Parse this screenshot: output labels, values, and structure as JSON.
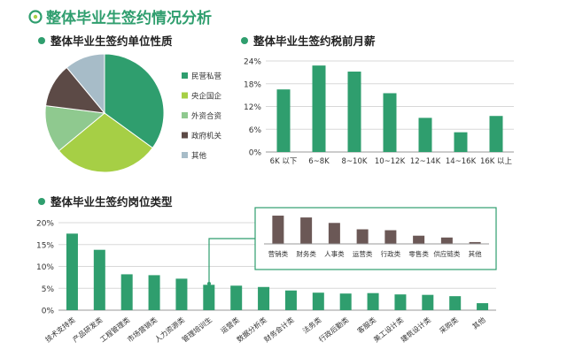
{
  "page": {
    "title": "整体毕业生签约情况分析"
  },
  "colors": {
    "green": "#2f9e6e",
    "pie": [
      "#2f9e6e",
      "#a6cf45",
      "#8fc98f",
      "#5c4a46",
      "#a7bcc8"
    ],
    "brown": "#6b5856",
    "sectionDot": "#2f9e6e"
  },
  "chart_data": [
    {
      "type": "pie",
      "title": "整体毕业生签约单位性质",
      "categories": [
        "民营私营",
        "央企国企",
        "外资合资",
        "政府机关",
        "其他"
      ],
      "values": [
        35,
        29,
        13,
        12,
        11
      ]
    },
    {
      "type": "bar",
      "title": "整体毕业生签约税前月薪",
      "categories": [
        "6K 以下",
        "6~8K",
        "8~10K",
        "10~12K",
        "12~14K",
        "14~16K",
        "16K 以上"
      ],
      "values": [
        16.5,
        22.8,
        21.2,
        15.5,
        9.0,
        5.2,
        9.5
      ],
      "y_ticks": [
        "0%",
        "6%",
        "12%",
        "18%",
        "24%"
      ],
      "ylim": [
        0,
        24
      ],
      "grid": true
    },
    {
      "type": "bar",
      "title": "整体毕业生签约岗位类型",
      "categories": [
        "技术支持类",
        "产品研发类",
        "工程管理类",
        "市场营销类",
        "人力资源类",
        "管理培训生",
        "运营类",
        "数据分析类",
        "财务会计类",
        "法务类",
        "行政后勤类",
        "客服类",
        "美工设计类",
        "建筑设计类",
        "采购类",
        "其他"
      ],
      "values": [
        17.5,
        13.8,
        8.2,
        8.0,
        7.2,
        5.8,
        5.6,
        5.3,
        4.5,
        4.0,
        3.8,
        3.9,
        3.6,
        3.5,
        3.2,
        1.6
      ],
      "y_ticks": [
        "0%",
        "5%",
        "10%",
        "15%",
        "20%"
      ],
      "ylim": [
        0,
        20
      ],
      "grid": true
    },
    {
      "type": "bar",
      "title": "",
      "categories": [
        "营销类",
        "财务类",
        "人事类",
        "运营类",
        "行政类",
        "零售类",
        "供应链类",
        "其他"
      ],
      "values": [
        3.1,
        2.9,
        2.3,
        1.6,
        1.5,
        0.9,
        0.7,
        0.2
      ],
      "ylim": [
        0,
        3.2
      ]
    }
  ]
}
